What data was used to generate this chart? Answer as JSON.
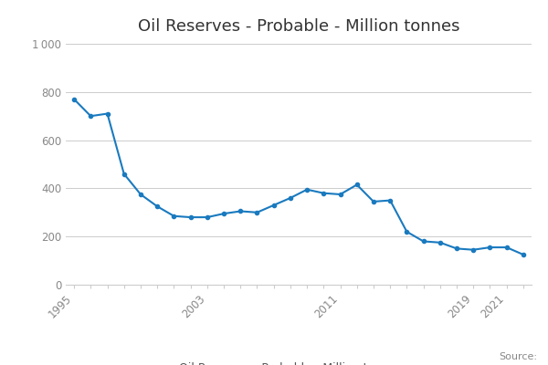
{
  "title": "Oil Reserves - Probable - Million tonnes",
  "legend_label": "Oil Reserves - Probable - Million tonnes",
  "source_text": "Source:",
  "years": [
    1995,
    1996,
    1997,
    1998,
    1999,
    2000,
    2001,
    2002,
    2003,
    2004,
    2005,
    2006,
    2007,
    2008,
    2009,
    2010,
    2011,
    2012,
    2013,
    2014,
    2015,
    2016,
    2017,
    2018,
    2019,
    2020,
    2021,
    2022
  ],
  "values": [
    770,
    700,
    710,
    460,
    375,
    325,
    285,
    280,
    280,
    295,
    305,
    300,
    330,
    360,
    395,
    380,
    375,
    415,
    345,
    350,
    220,
    180,
    175,
    150,
    145,
    155,
    155,
    125
  ],
  "line_color": "#1a7abf",
  "marker": "o",
  "marker_size": 3,
  "linewidth": 1.5,
  "ylim": [
    0,
    1000
  ],
  "yticks": [
    0,
    200,
    400,
    600,
    800,
    1000
  ],
  "ytick_labels": [
    "0",
    "200",
    "400",
    "600",
    "800",
    "1 000"
  ],
  "xtick_years": [
    1995,
    2003,
    2011,
    2019,
    2021
  ],
  "title_fontsize": 13,
  "tick_fontsize": 8.5,
  "legend_fontsize": 9,
  "source_fontsize": 8,
  "bg_color": "#ffffff",
  "grid_color": "#cccccc",
  "tick_color": "#888888",
  "text_color": "#555555"
}
